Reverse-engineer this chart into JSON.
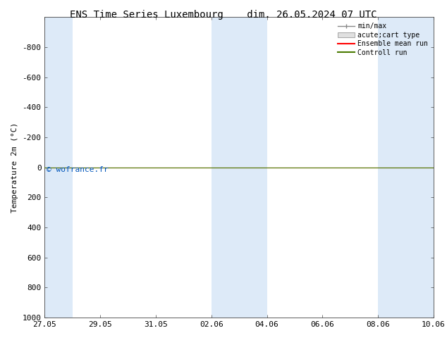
{
  "title": "ENS Time Series Luxembourg",
  "date_str": "dim. 26.05.2024 07 UTC",
  "ylabel": "Temperature 2m (°C)",
  "ylim": [
    1000,
    -1000
  ],
  "yticks": [
    -800,
    -600,
    -400,
    -200,
    0,
    200,
    400,
    600,
    800,
    1000
  ],
  "xtick_labels": [
    "27.05",
    "29.05",
    "31.05",
    "02.06",
    "04.06",
    "06.06",
    "08.06",
    "10.06"
  ],
  "xtick_positions": [
    0,
    2,
    4,
    6,
    8,
    10,
    12,
    14
  ],
  "bg_color": "#ffffff",
  "shade_color": "#ddeaf8",
  "control_run_y": 0,
  "ensemble_mean_y": 0,
  "legend_labels": [
    "min/max",
    "acute;cart type",
    "Ensemble mean run",
    "Controll run"
  ],
  "legend_colors": [
    "#888888",
    "#cccccc",
    "#ff0000",
    "#4a7a00"
  ],
  "copyright_text": "© wofrance.fr",
  "copyright_color": "#0055bb",
  "title_fontsize": 10,
  "axis_fontsize": 8,
  "tick_fontsize": 8
}
